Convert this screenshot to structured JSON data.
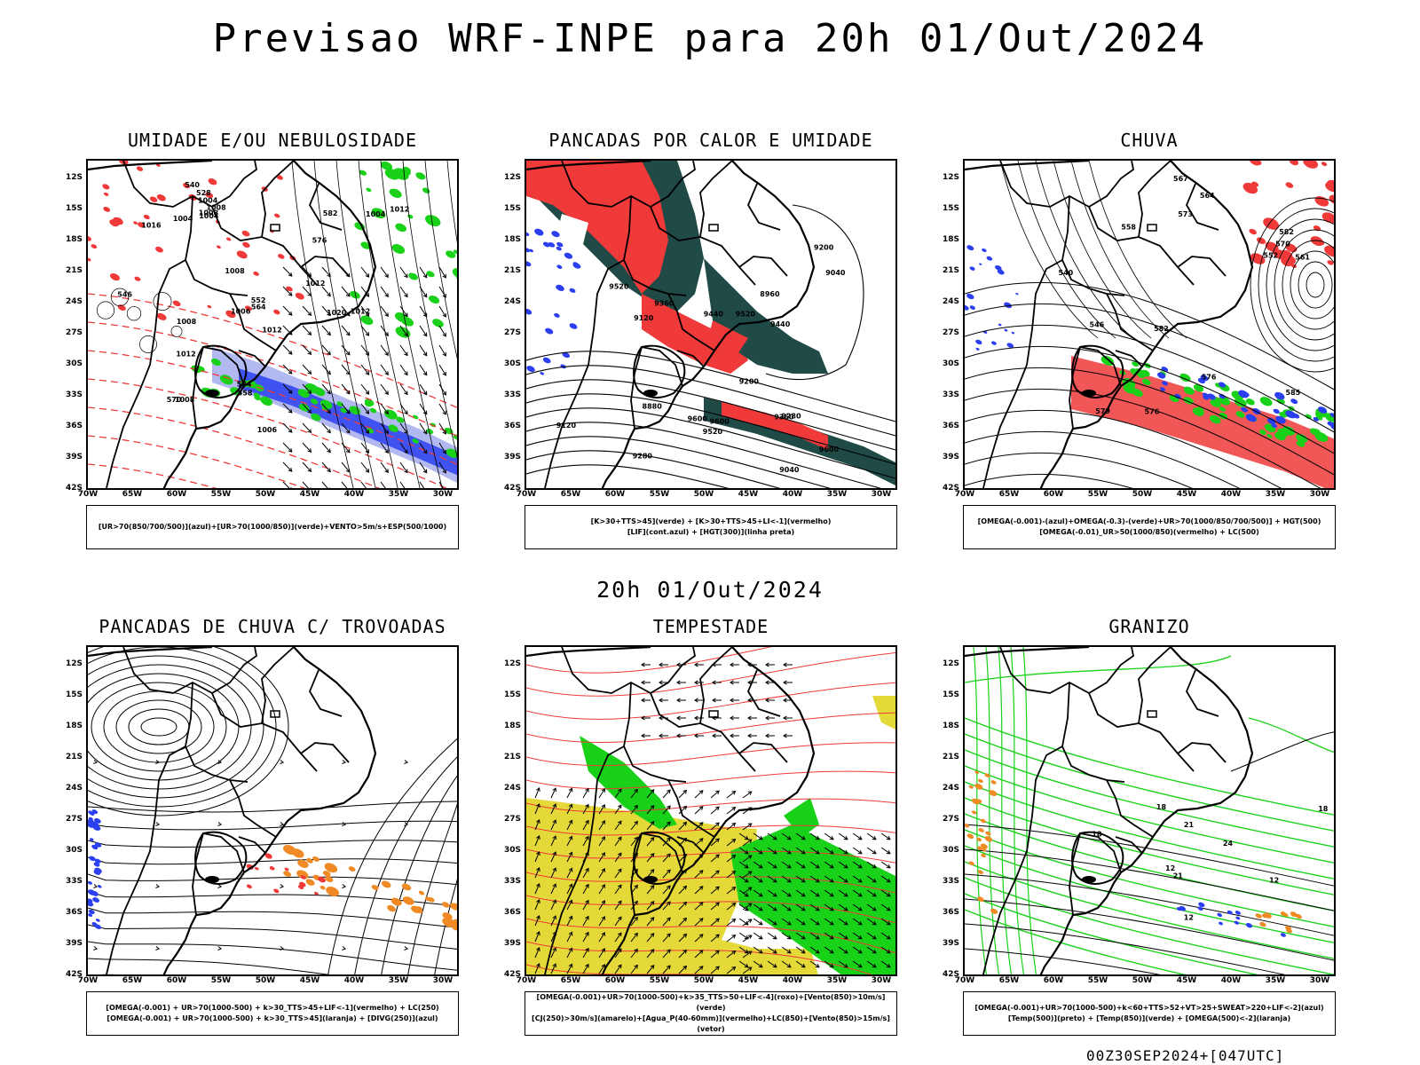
{
  "header": {
    "title": "Previsao WRF-INPE  para 20h 01/Out/2024",
    "subtitle": "20h 01/Out/2024",
    "footer": "00Z30SEP2024+[047UTC]"
  },
  "axes": {
    "lat": [
      "12S",
      "15S",
      "18S",
      "21S",
      "24S",
      "27S",
      "30S",
      "33S",
      "36S",
      "39S",
      "42S"
    ],
    "lon": [
      "70W",
      "65W",
      "60W",
      "55W",
      "50W",
      "45W",
      "40W",
      "35W",
      "30W"
    ]
  },
  "panels": [
    {
      "title": "UMIDADE E/OU NEBULOSIDADE",
      "legend": [
        "[UR>70(850/700/500)](azul)+[UR>70(1000/850)](verde)+VENTO>5m/s+ESP(500/1000)"
      ],
      "labels": [
        "1004",
        "1004",
        "1008",
        "1012",
        "1012",
        "1008",
        "1016",
        "1004",
        "1008",
        "1008",
        "1012",
        "1006",
        "1012",
        "1020",
        "1008",
        "1012",
        "1006",
        "1004",
        "552",
        "570",
        "576",
        "582",
        "558",
        "546",
        "540",
        "534",
        "528",
        "564"
      ]
    },
    {
      "title": "PANCADAS POR CALOR E UMIDADE",
      "legend": [
        "[K>30+TTS>45](verde)  +  [K>30+TTS>45+LI<-1](vermelho)",
        "[LIF](cont.azul)  +  [HGT(300)](linha preta)"
      ],
      "labels": [
        "9600",
        "9600",
        "9600",
        "9520",
        "9520",
        "9440",
        "9360",
        "9280",
        "9200",
        "9120",
        "9040",
        "8960",
        "8880",
        "9520",
        "9440",
        "9360",
        "9280",
        "9200",
        "9120",
        "9040"
      ]
    },
    {
      "title": "CHUVA",
      "legend": [
        "[OMEGA(-0.001)-(azul)+OMEGA(-0.3)-(verde)+UR>70(1000/850/700/500)]  +  HGT(500)",
        "[OMEGA(-0.01)_UR>50(1000/850)(vermelho)  +  LC(500)"
      ],
      "labels": [
        "582",
        "585",
        "582",
        "576",
        "573",
        "570",
        "567",
        "579",
        "576",
        "564",
        "558",
        "552",
        "540",
        "546",
        "561"
      ]
    },
    {
      "title": "PANCADAS DE CHUVA C/ TROVOADAS",
      "legend": [
        "[OMEGA(-0.001)  +  UR>70(1000-500)  +  k>30_TTS>45+LIF<-1](vermelho)  +  LC(250)",
        "[OMEGA(-0.001)  +  UR>70(1000-500)  +  k>30_TTS>45](laranja)  +  [DIVG(250)](azul)"
      ],
      "labels": []
    },
    {
      "title": "TEMPESTADE",
      "legend": [
        "[OMEGA(-0.001)+UR>70(1000-500)+k>35_TTS>50+LIF<-4](roxo)+[Vento(850)>10m/s](verde)",
        "[CJ(250)>30m/s](amarelo)+[Agua_P(40-60mm)](vermelho)+LC(850)+[Vento(850)>15m/s](vetor)"
      ],
      "labels": []
    },
    {
      "title": "GRANIZO",
      "legend": [
        "[OMEGA(-0.001)+UR>70(1000-500)+k<60+TTS>52+VT>25+SWEAT>220+LIF<-2](azul)",
        "[Temp(500)](preto)  +  [Temp(850)](verde)  +  [OMEGA(500)<-2](laranja)"
      ],
      "labels": [
        "12",
        "12",
        "18",
        "18",
        "12",
        "18",
        "21",
        "24",
        "21"
      ]
    }
  ],
  "colors": {
    "red": "#f03a3a",
    "green": "#19d119",
    "blue": "#2b3ff0",
    "lavender": "#aab0ee",
    "darkteal": "#1f4a45",
    "yellow": "#e5d93a",
    "orange": "#ef8a25"
  }
}
